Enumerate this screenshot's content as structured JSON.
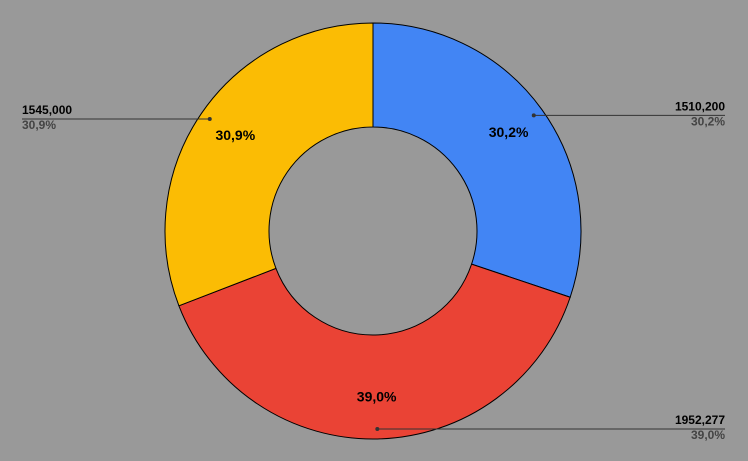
{
  "chart_data": {
    "type": "donut",
    "categories": [
      "Blue",
      "Red",
      "Yellow"
    ],
    "values": [
      1510200,
      1952277,
      1545000
    ],
    "value_labels": [
      "1510,200",
      "1952,277",
      "1545,000"
    ],
    "percent_labels": [
      "30,2%",
      "39,0%",
      "30,9%"
    ],
    "colors": [
      "#4285f4",
      "#ea4335",
      "#fbbc04"
    ]
  }
}
